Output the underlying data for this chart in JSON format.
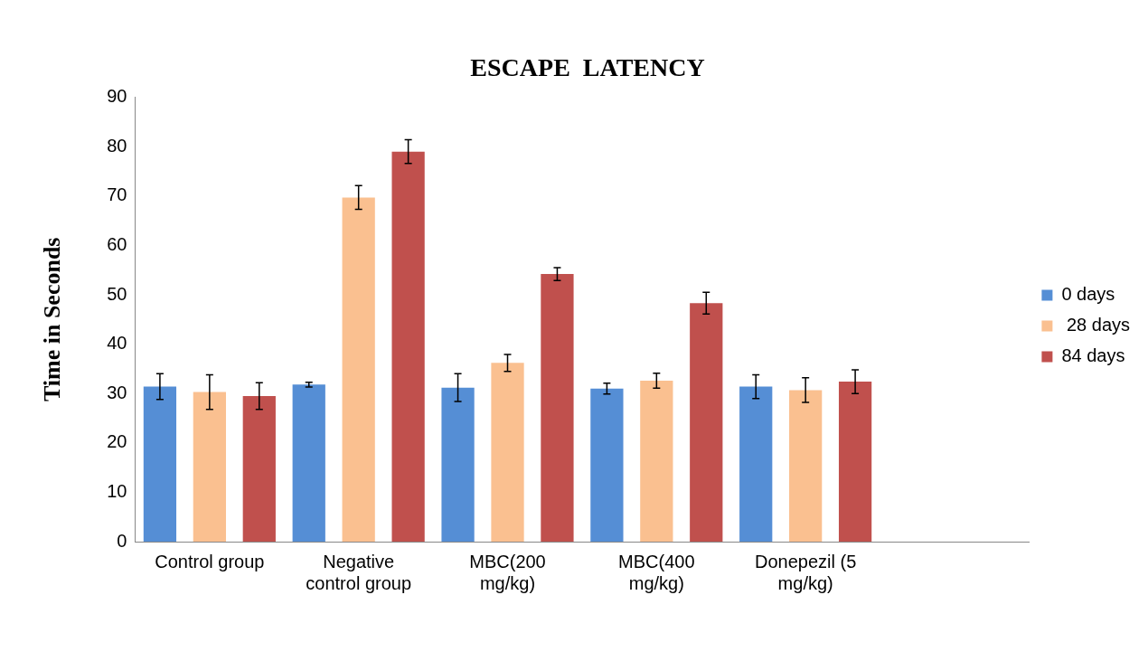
{
  "chart_data": {
    "type": "bar",
    "title": "ESCAPE  LATENCY",
    "ylabel": "Time in Seconds",
    "categories": [
      "Control group",
      "Negative control group",
      "MBC(200 mg/kg)",
      "MBC(400 mg/kg)",
      "Donepezil (5 mg/kg)",
      null
    ],
    "series": [
      {
        "name": "0 days",
        "color": "#558ed5",
        "values": [
          31.4,
          31.8,
          31.2,
          31.0,
          31.4,
          null
        ],
        "errors": [
          2.6,
          0.5,
          2.8,
          1.1,
          2.4,
          null
        ]
      },
      {
        "name": " 28 days",
        "color": "#fac090",
        "values": [
          30.3,
          69.7,
          36.2,
          32.6,
          30.7,
          null
        ],
        "errors": [
          3.5,
          2.4,
          1.7,
          1.5,
          2.5,
          null
        ]
      },
      {
        "name": "84 days",
        "color": "#c0504d",
        "values": [
          29.5,
          79.0,
          54.2,
          48.3,
          32.4,
          null
        ],
        "errors": [
          2.7,
          2.4,
          1.3,
          2.2,
          2.4,
          null
        ]
      }
    ],
    "ylim": [
      0,
      90
    ],
    "yticks": [
      0,
      10,
      20,
      30,
      40,
      50,
      60,
      70,
      80,
      90
    ],
    "grid": false,
    "legend": "right"
  }
}
